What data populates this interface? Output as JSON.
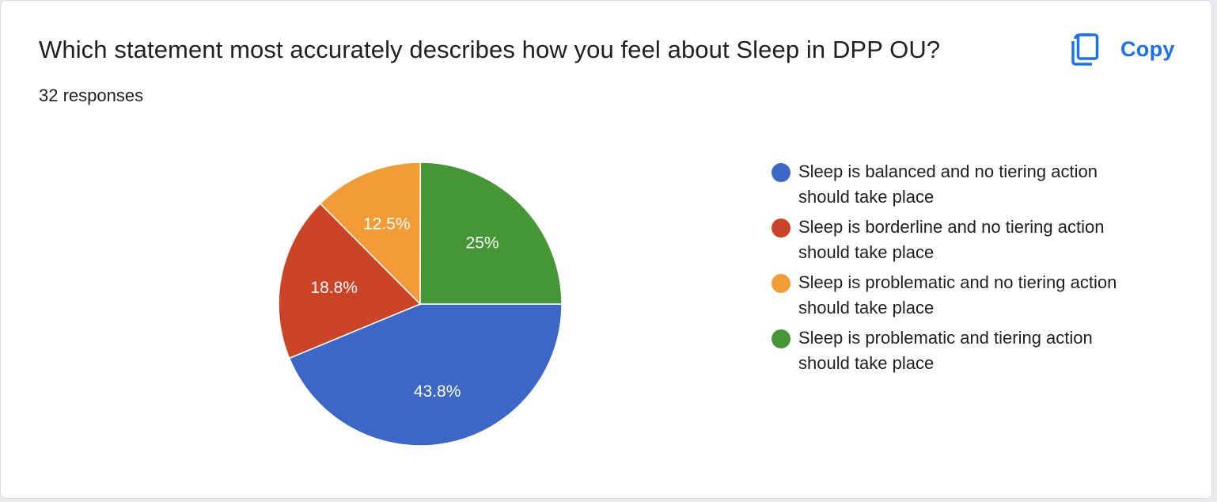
{
  "question": {
    "title": "Which statement most accurately describes how you feel about Sleep in DPP OU?",
    "responses_label": "32 responses"
  },
  "toolbar": {
    "copy_label": "Copy",
    "copy_icon": "copy-icon",
    "accent_color": "#1a73e8"
  },
  "chart_data": {
    "type": "pie",
    "title": "",
    "legend_position": "right",
    "slices": [
      {
        "label": "Sleep is balanced and no tiering action should take place",
        "value": 43.8,
        "display": "43.8%",
        "color": "#3c67c6"
      },
      {
        "label": "Sleep is borderline and no tiering action should take place",
        "value": 18.8,
        "display": "18.8%",
        "color": "#cc4428"
      },
      {
        "label": "Sleep is problematic and no tiering action should take place",
        "value": 12.5,
        "display": "12.5%",
        "color": "#f29c37"
      },
      {
        "label": "Sleep is problematic and tiering action should take place",
        "value": 25,
        "display": "25%",
        "color": "#459635"
      }
    ]
  }
}
